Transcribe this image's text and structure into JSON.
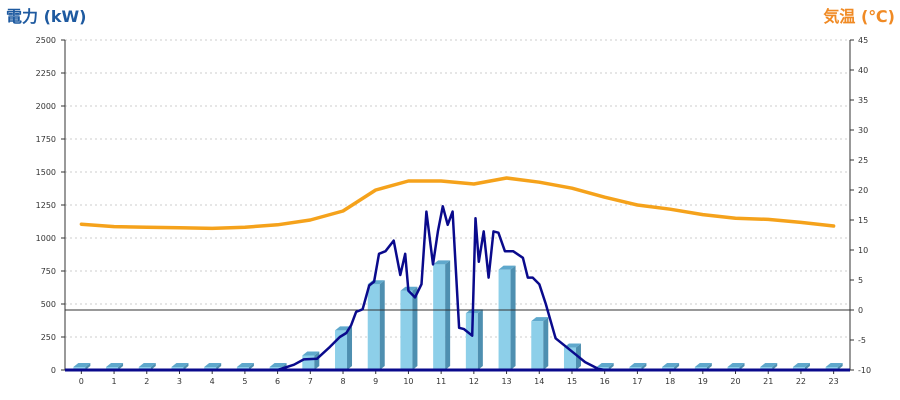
{
  "chart_data": {
    "type": "bar",
    "y_left_label": "電力 (kW)",
    "y_right_label": "気温 (℃)",
    "categories": [
      "0",
      "1",
      "2",
      "3",
      "4",
      "5",
      "6",
      "7",
      "8",
      "9",
      "10",
      "11",
      "12",
      "13",
      "14",
      "15",
      "16",
      "17",
      "18",
      "19",
      "20",
      "21",
      "22",
      "23"
    ],
    "y_left_range": [
      0,
      2500
    ],
    "y_left_ticks": [
      "0",
      "250",
      "500",
      "750",
      "1000",
      "1250",
      "1500",
      "1750",
      "2000",
      "2250",
      "2500"
    ],
    "y_right_range": [
      -10,
      45
    ],
    "y_right_ticks": [
      "-10",
      "-5",
      "0",
      "5",
      "10",
      "15",
      "20",
      "25",
      "30",
      "35",
      "40",
      "45"
    ],
    "grid": true,
    "colors": {
      "bar_front": "#8dcfe9",
      "bar_top": "#5fa8cc",
      "bar_side": "#4e8fb0",
      "power_line": "#0a0a8c",
      "temperature_line": "#f5a21b",
      "grid": "#cccccc",
      "zero_line": "#333333"
    },
    "bars": {
      "values": [
        0,
        0,
        0,
        0,
        0,
        0,
        0,
        110,
        300,
        650,
        600,
        800,
        430,
        760,
        370,
        170,
        0,
        0,
        0,
        0,
        0,
        0,
        0,
        0
      ]
    },
    "power_line": {
      "x": [
        6.0,
        6.5,
        6.8,
        7.2,
        7.6,
        7.9,
        8.1,
        8.25,
        8.4,
        8.6,
        8.8,
        8.95,
        9.1,
        9.3,
        9.55,
        9.75,
        9.9,
        10.0,
        10.2,
        10.4,
        10.55,
        10.75,
        10.9,
        11.05,
        11.2,
        11.35,
        11.55,
        11.7,
        11.95,
        12.05,
        12.15,
        12.3,
        12.45,
        12.6,
        12.75,
        12.95,
        13.2,
        13.5,
        13.65,
        13.8,
        14.0,
        14.2,
        14.5,
        14.8,
        15.1,
        15.4,
        15.8,
        16.0
      ],
      "y": [
        0,
        40,
        80,
        85,
        175,
        250,
        280,
        340,
        440,
        460,
        640,
        670,
        880,
        900,
        980,
        720,
        880,
        600,
        550,
        650,
        1200,
        800,
        1050,
        1240,
        1100,
        1200,
        320,
        310,
        260,
        1150,
        820,
        1050,
        700,
        1050,
        1040,
        900,
        900,
        850,
        700,
        700,
        650,
        500,
        240,
        180,
        120,
        60,
        10,
        0
      ]
    },
    "temperature_line": {
      "x": [
        0,
        1,
        2,
        3,
        4,
        5,
        6,
        7,
        8,
        9,
        10,
        11,
        12,
        13,
        14,
        15,
        16,
        17,
        18,
        19,
        20,
        21,
        22,
        23
      ],
      "y": [
        14.3,
        13.9,
        13.8,
        13.7,
        13.6,
        13.8,
        14.2,
        15.0,
        16.5,
        20.0,
        21.5,
        21.5,
        21.0,
        22.0,
        21.3,
        20.3,
        18.8,
        17.5,
        16.8,
        15.9,
        15.3,
        15.1,
        14.6,
        14.0
      ]
    },
    "reference_line_right_value": 0
  }
}
